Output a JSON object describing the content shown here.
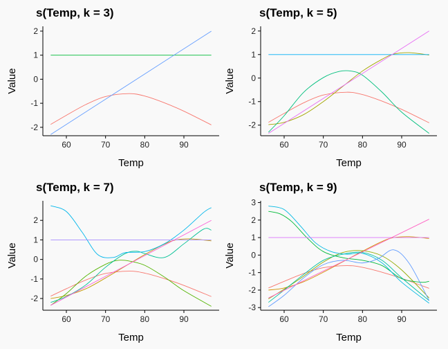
{
  "chart_data": [
    {
      "type": "line",
      "title": "s(Temp, k = 3)",
      "xlabel": "Temp",
      "ylabel": "Value",
      "xlim": [
        54,
        99
      ],
      "ylim": [
        -2.35,
        2.2
      ],
      "xticks": [
        60,
        70,
        80,
        90
      ],
      "yticks": [
        -2,
        -1,
        0,
        1,
        2
      ],
      "grid": false,
      "series": [
        {
          "color": "#F8766D",
          "x": [
            56,
            60,
            65,
            70,
            76,
            80,
            85,
            90,
            97
          ],
          "y": [
            -1.88,
            -1.5,
            -1.05,
            -0.72,
            -0.6,
            -0.7,
            -0.98,
            -1.33,
            -1.9
          ]
        },
        {
          "color": "#00BA38",
          "x": [
            56,
            97
          ],
          "y": [
            1,
            1
          ]
        },
        {
          "color": "#619CFF",
          "x": [
            56,
            97
          ],
          "y": [
            -2.3,
            2.0
          ]
        }
      ]
    },
    {
      "type": "line",
      "title": "s(Temp, k = 5)",
      "xlabel": "Temp",
      "ylabel": "Value",
      "xlim": [
        54,
        99
      ],
      "ylim": [
        -2.45,
        2.2
      ],
      "xticks": [
        60,
        70,
        80,
        90
      ],
      "yticks": [
        -2,
        -1,
        0,
        1,
        2
      ],
      "grid": false,
      "series": [
        {
          "color": "#F8766D",
          "x": [
            56,
            60,
            65,
            70,
            76,
            80,
            85,
            90,
            97
          ],
          "y": [
            -1.88,
            -1.5,
            -1.05,
            -0.72,
            -0.6,
            -0.7,
            -0.98,
            -1.33,
            -1.9
          ]
        },
        {
          "color": "#A3A500",
          "x": [
            56,
            60,
            65,
            70,
            75,
            80,
            85,
            88,
            92,
            97
          ],
          "y": [
            -1.98,
            -1.88,
            -1.55,
            -1.0,
            -0.35,
            0.3,
            0.8,
            1.02,
            1.08,
            0.98
          ]
        },
        {
          "color": "#00BF7D",
          "x": [
            56,
            60,
            65,
            70,
            74,
            77,
            80,
            85,
            90,
            97
          ],
          "y": [
            -2.3,
            -1.6,
            -0.6,
            0.02,
            0.28,
            0.3,
            0.12,
            -0.6,
            -1.45,
            -2.35
          ]
        },
        {
          "color": "#00B0F6",
          "x": [
            56,
            97
          ],
          "y": [
            1,
            1
          ]
        },
        {
          "color": "#E76BF3",
          "x": [
            56,
            97
          ],
          "y": [
            -2.35,
            2.0
          ]
        }
      ]
    },
    {
      "type": "line",
      "title": "s(Temp, k = 7)",
      "xlabel": "Temp",
      "ylabel": "Value",
      "xlim": [
        54,
        99
      ],
      "ylim": [
        -2.6,
        3.0
      ],
      "xticks": [
        60,
        70,
        80,
        90
      ],
      "yticks": [
        -2,
        -1,
        0,
        1,
        2
      ],
      "grid": false,
      "series": [
        {
          "color": "#F8766D",
          "x": [
            56,
            60,
            65,
            70,
            76,
            80,
            85,
            90,
            97
          ],
          "y": [
            -1.88,
            -1.5,
            -1.05,
            -0.72,
            -0.6,
            -0.7,
            -0.98,
            -1.33,
            -1.9
          ]
        },
        {
          "color": "#C49A00",
          "x": [
            56,
            60,
            65,
            70,
            75,
            80,
            85,
            88,
            92,
            97
          ],
          "y": [
            -2.0,
            -1.85,
            -1.5,
            -0.95,
            -0.35,
            0.25,
            0.78,
            1.0,
            1.05,
            0.95
          ]
        },
        {
          "color": "#53B400",
          "x": [
            56,
            60,
            65,
            70,
            73,
            76,
            80,
            85,
            90,
            97
          ],
          "y": [
            -2.35,
            -1.75,
            -0.85,
            -0.25,
            -0.05,
            -0.08,
            -0.3,
            -0.9,
            -1.6,
            -2.4
          ]
        },
        {
          "color": "#00C094",
          "x": [
            56,
            60,
            65,
            70,
            75,
            78,
            80,
            85,
            90,
            95,
            97
          ],
          "y": [
            -2.2,
            -1.9,
            -1.3,
            -0.4,
            0.3,
            0.42,
            0.3,
            0.1,
            0.8,
            1.55,
            1.5
          ]
        },
        {
          "color": "#00B6EB",
          "x": [
            56,
            60,
            64,
            68,
            72,
            75,
            80,
            85,
            90,
            95,
            97
          ],
          "y": [
            2.75,
            2.45,
            1.4,
            0.25,
            0.1,
            0.35,
            0.4,
            0.8,
            1.5,
            2.4,
            2.65
          ]
        },
        {
          "color": "#A58AFF",
          "x": [
            56,
            97
          ],
          "y": [
            1,
            1
          ]
        },
        {
          "color": "#FB61D7",
          "x": [
            56,
            97
          ],
          "y": [
            -2.35,
            2.0
          ]
        }
      ]
    },
    {
      "type": "line",
      "title": "s(Temp, k = 9)",
      "xlabel": "Temp",
      "ylabel": "Value",
      "xlim": [
        54,
        99
      ],
      "ylim": [
        -3.15,
        3.1
      ],
      "xticks": [
        60,
        70,
        80,
        90
      ],
      "yticks": [
        -3,
        -2,
        -1,
        0,
        1,
        2,
        3
      ],
      "grid": false,
      "series": [
        {
          "color": "#F8766D",
          "x": [
            56,
            60,
            65,
            70,
            76,
            80,
            85,
            90,
            97
          ],
          "y": [
            -1.88,
            -1.5,
            -1.05,
            -0.72,
            -0.6,
            -0.7,
            -0.98,
            -1.33,
            -1.9
          ]
        },
        {
          "color": "#D39200",
          "x": [
            56,
            60,
            65,
            70,
            75,
            80,
            85,
            88,
            92,
            97
          ],
          "y": [
            -2.0,
            -1.88,
            -1.52,
            -0.98,
            -0.38,
            0.22,
            0.78,
            1.0,
            1.05,
            0.95
          ]
        },
        {
          "color": "#93AA00",
          "x": [
            56,
            60,
            65,
            70,
            75,
            80,
            85,
            90,
            97
          ],
          "y": [
            -2.5,
            -1.95,
            -1.2,
            -0.4,
            0.15,
            0.25,
            -0.05,
            -0.85,
            -2.45
          ]
        },
        {
          "color": "#00BA38",
          "x": [
            56,
            59,
            62,
            66,
            70,
            75,
            80,
            85,
            90,
            95,
            97
          ],
          "y": [
            2.5,
            2.35,
            1.9,
            0.95,
            0.2,
            -0.15,
            -0.3,
            -0.6,
            -1.35,
            -1.55,
            -1.5
          ]
        },
        {
          "color": "#00C19F",
          "x": [
            56,
            60,
            65,
            70,
            75,
            80,
            85,
            90,
            97
          ],
          "y": [
            -2.7,
            -2.0,
            -1.1,
            -0.3,
            0.05,
            0.15,
            -0.3,
            -1.3,
            -2.6
          ]
        },
        {
          "color": "#00B9E3",
          "x": [
            56,
            60,
            64,
            68,
            72,
            76,
            80,
            85,
            90,
            97
          ],
          "y": [
            2.8,
            2.6,
            1.7,
            0.7,
            0.2,
            0.05,
            0.1,
            -0.45,
            -1.55,
            -2.75
          ]
        },
        {
          "color": "#619CFF",
          "x": [
            56,
            60,
            65,
            70,
            75,
            80,
            84,
            88,
            92,
            97
          ],
          "y": [
            -2.95,
            -2.3,
            -1.3,
            -0.55,
            -0.3,
            -0.45,
            -0.2,
            0.3,
            -0.5,
            -2.6
          ]
        },
        {
          "color": "#DB72FB",
          "x": [
            56,
            97
          ],
          "y": [
            1,
            1
          ]
        },
        {
          "color": "#FF61C3",
          "x": [
            56,
            97
          ],
          "y": [
            -2.45,
            2.05
          ]
        }
      ]
    }
  ]
}
